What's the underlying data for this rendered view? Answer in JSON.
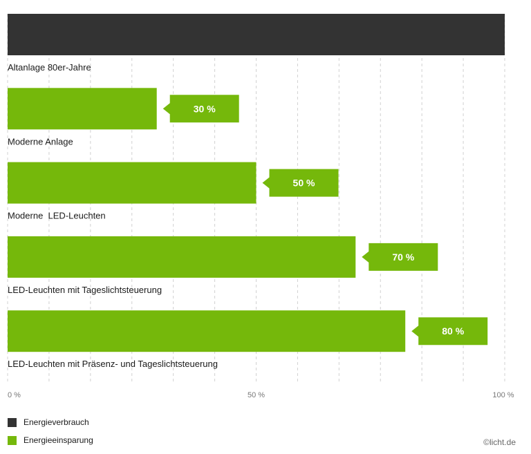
{
  "chart_data": {
    "type": "bar",
    "orientation": "horizontal",
    "categories": [
      "Altanlage 80er-Jahre",
      "Moderne Anlage",
      "Moderne  LED-Leuchten",
      "LED-Leuchten mit Tageslichtsteuerung",
      "LED-Leuchten mit Präsenz- und Tageslichtsteuerung"
    ],
    "series": [
      {
        "name": "Energieverbrauch",
        "values": [
          100,
          null,
          null,
          null,
          null
        ]
      },
      {
        "name": "Energieeinsparung",
        "values": [
          null,
          30,
          50,
          70,
          80
        ]
      }
    ],
    "data_labels": [
      "",
      "30 %",
      "50 %",
      "70 %",
      "80 %"
    ],
    "xlim": [
      0,
      100
    ],
    "x_tick_labels": [
      "0 %",
      "50 %",
      "100 %"
    ],
    "grid": "vertical dashed",
    "legend_position": "bottom-left",
    "colors": {
      "Energieverbrauch": "#333333",
      "Energieeinsparung": "#75b80b",
      "label_text": "#ffffff"
    }
  },
  "legend": {
    "items": [
      "Energieverbrauch",
      "Energieeinsparung"
    ]
  },
  "credit": "©licht.de"
}
